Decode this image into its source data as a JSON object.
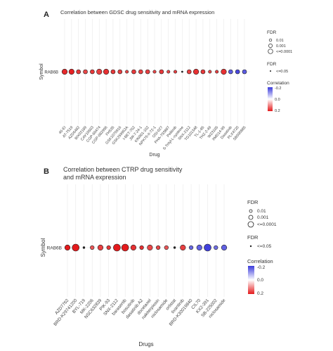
{
  "chart_data": [
    {
      "type": "scatter",
      "panel_label": "A",
      "title": "Correlation between GDSC drug sensitivity and mRNA expression",
      "xlabel": "Drug",
      "ylabel": "Symbol",
      "symbol": "RAB6B",
      "categories": [
        "46-EI",
        "AT-7519",
        "AZD6482",
        "BIX02189",
        "CAY10603",
        "CGP-60474",
        "CGP-082996",
        "FH535",
        "GSK1070916",
        "GSK269962A",
        "I-BET-762",
        "JW-7-24-1",
        "KIN001-102",
        "NPK76-II-72-1",
        "OSI-027",
        "PHA-793887",
        "Pelitinib",
        "S-Trityl-L-cysteine",
        "SNX-2112",
        "TG101348",
        "TL-1-85",
        "THZ-2-49",
        "WZ3105",
        "XMD14-99",
        "Dasatinib",
        "PLX4720",
        "SB590885"
      ],
      "correlation": [
        0.18,
        0.19,
        0.16,
        0.14,
        0.16,
        0.15,
        0.17,
        0.16,
        0.15,
        0.14,
        0.16,
        0.15,
        0.15,
        0.14,
        0.16,
        0.14,
        0.15,
        0.13,
        0.15,
        0.17,
        0.16,
        0.14,
        0.15,
        0.17,
        -0.15,
        -0.18,
        -0.15
      ],
      "fdr_size": [
        "<=0.0001",
        "<=0.0001",
        "0.001",
        "0.001",
        "0.001",
        "<=0.0001",
        "<=0.0001",
        "0.001",
        "0.001",
        "0.01",
        "0.001",
        "0.001",
        "0.001",
        "0.01",
        "0.001",
        "0.01",
        "0.01",
        "<=0.05",
        "0.001",
        "<=0.0001",
        "0.001",
        "0.01",
        "0.01",
        "<=0.0001",
        "0.001",
        "0.001",
        "0.001"
      ],
      "legend": {
        "fdr_title": "FDR",
        "fdr_levels": [
          "0.01",
          "0.001",
          "<=0.0001"
        ],
        "fdr2_title": "FDR",
        "fdr2_level": "<=0.05",
        "corr_title": "Correlation",
        "corr_ticks": [
          "-0.2",
          "0.0",
          "0.2"
        ]
      },
      "colors": {
        "pos": "#e41a1c",
        "neg": "#3b3bdc",
        "mid": "#ffffff"
      }
    },
    {
      "type": "scatter",
      "panel_label": "B",
      "title_lines": [
        "Correlation between CTRP drug sensitivity",
        "and mRNA expression"
      ],
      "xlabel": "Drugs",
      "ylabel": "Symbol",
      "symbol": "RAB6B",
      "categories": [
        "AZD7762",
        "BRD-K29741200",
        "BYL-719",
        "MK-2206",
        "NSC632839",
        "PIK-93",
        "SNX-2112",
        "barasertib",
        "bosutinib",
        "dasatinib A2",
        "docetaxel",
        "nakiterpiosin",
        "niclosamide",
        "orlistat",
        "tivantinib",
        "BRD-K30019840",
        "CIL70",
        "KX2-391",
        "SB-225002",
        "niclosamide"
      ],
      "correlation": [
        0.2,
        0.21,
        0.1,
        0.12,
        0.15,
        0.16,
        0.2,
        0.22,
        0.17,
        0.17,
        0.14,
        0.14,
        0.12,
        0.11,
        0.15,
        -0.13,
        -0.14,
        -0.19,
        -0.12,
        -0.14
      ],
      "fdr_size": [
        "0.001",
        "<=0.0001",
        "<=0.05",
        "0.01",
        "0.001",
        "0.01",
        "<=0.0001",
        "<=0.0001",
        "0.001",
        "0.01",
        "0.001",
        "0.01",
        "0.01",
        "<=0.05",
        "0.001",
        "0.01",
        "0.001",
        "<=0.0001",
        "0.01",
        "0.001"
      ],
      "legend": {
        "fdr_title": "FDR",
        "fdr_levels": [
          "0.01",
          "0.001",
          "<=0.0001"
        ],
        "fdr2_title": "FDR",
        "fdr2_level": "<=0.05",
        "corr_title": "Correlation",
        "corr_ticks": [
          "-0.2",
          "0.0",
          "0.2"
        ]
      },
      "colors": {
        "pos": "#e41a1c",
        "neg": "#3b3bdc",
        "mid": "#ffffff"
      }
    }
  ]
}
